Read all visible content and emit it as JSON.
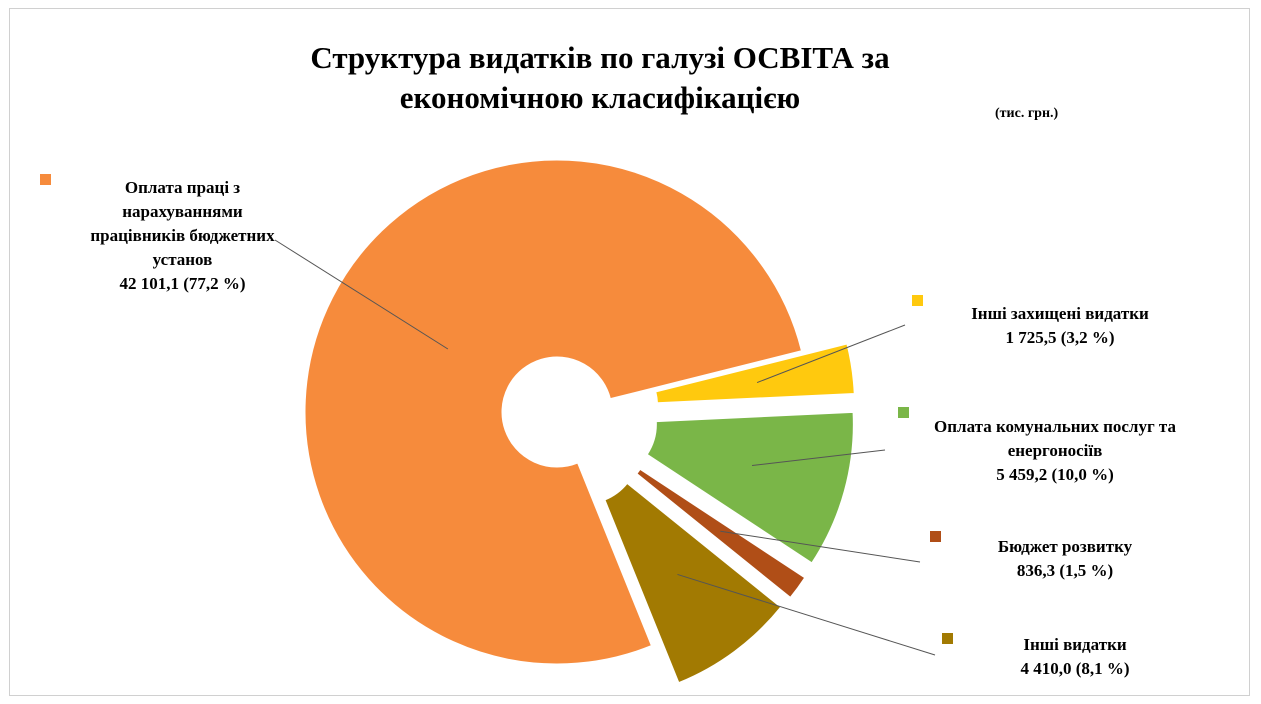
{
  "chart_data": {
    "type": "donut",
    "title": "Структура видатків по галузі ОСВІТА за економічною класифікацією",
    "unit_label": "(тис. грн.)",
    "categories": [
      "Оплата праці з нарахуваннями працівників бюджетних установ",
      "Інші захищені видатки",
      "Оплата комунальних послуг та енергоносіїв",
      "Бюджет розвитку",
      "Інші видатки"
    ],
    "values": [
      42101.1,
      1725.5,
      5459.2,
      836.3,
      4410.0
    ],
    "value_labels": [
      "42 101,1 (77,2 %)",
      "1 725,5 (3,2 %)",
      "5 459,2 (10,0 %)",
      "836,3 (1,5 %)",
      "4 410,0 (8,1 %)"
    ],
    "colors": [
      "#f68b3c",
      "#ffc90e",
      "#7ab648",
      "#b04e17",
      "#a27a02"
    ]
  }
}
